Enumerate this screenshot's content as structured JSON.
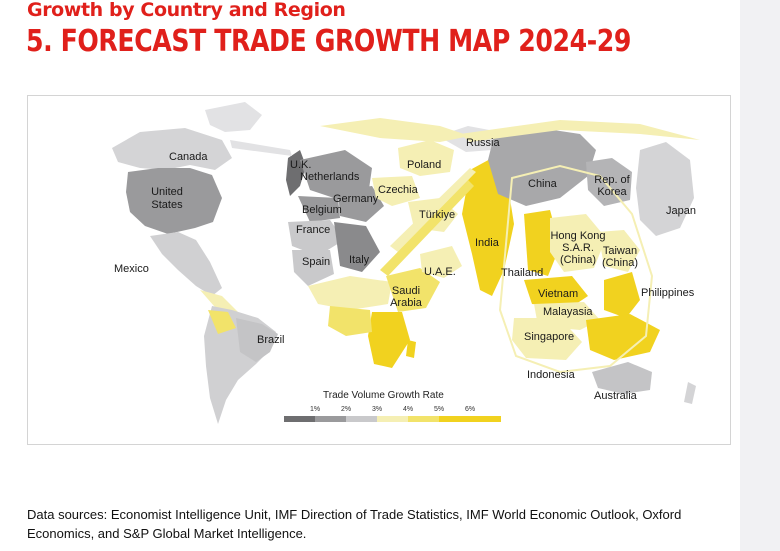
{
  "header": {
    "subtitle": "Growth by Country and Region",
    "title": "5. FORECAST TRADE GROWTH MAP 2024-29"
  },
  "map": {
    "labels": [
      {
        "key": "canada",
        "text": "Canada"
      },
      {
        "key": "united_states",
        "text": "United States"
      },
      {
        "key": "mexico",
        "text": "Mexico"
      },
      {
        "key": "brazil",
        "text": "Brazil"
      },
      {
        "key": "uk",
        "text": "U.K."
      },
      {
        "key": "netherlands",
        "text": "Netherlands"
      },
      {
        "key": "germany",
        "text": "Germany"
      },
      {
        "key": "belgium",
        "text": "Belgium"
      },
      {
        "key": "france",
        "text": "France"
      },
      {
        "key": "spain",
        "text": "Spain"
      },
      {
        "key": "italy",
        "text": "Italy"
      },
      {
        "key": "poland",
        "text": "Poland"
      },
      {
        "key": "czechia",
        "text": "Czechia"
      },
      {
        "key": "turkiye",
        "text": "Türkiye"
      },
      {
        "key": "russia",
        "text": "Russia"
      },
      {
        "key": "uae",
        "text": "U.A.E."
      },
      {
        "key": "saudi_arabia",
        "text": "Saudi Arabia"
      },
      {
        "key": "india",
        "text": "India"
      },
      {
        "key": "china",
        "text": "China"
      },
      {
        "key": "korea",
        "text": "Rep. of Korea"
      },
      {
        "key": "japan",
        "text": "Japan"
      },
      {
        "key": "hong_kong",
        "text": "Hong Kong S.A.R. (China)"
      },
      {
        "key": "taiwan",
        "text": "Taiwan (China)"
      },
      {
        "key": "thailand",
        "text": "Thailand"
      },
      {
        "key": "vietnam",
        "text": "Vietnam"
      },
      {
        "key": "malaysia",
        "text": "Malayasia"
      },
      {
        "key": "singapore",
        "text": "Singapore"
      },
      {
        "key": "philippines",
        "text": "Philippines"
      },
      {
        "key": "indonesia",
        "text": "Indonesia"
      },
      {
        "key": "australia",
        "text": "Australia"
      }
    ],
    "colors": {
      "1pct": "#6e6e70",
      "2pct": "#9a9a9c",
      "3pct": "#c9c9cb",
      "4pct": "#f5efb4",
      "5pct": "#f2e36a",
      "6pct": "#f1d21f",
      "outline": "#ffffff"
    }
  },
  "legend": {
    "title": "Trade Volume Growth Rate",
    "ticks": [
      "1%",
      "2%",
      "3%",
      "4%",
      "5%",
      "6%"
    ],
    "segment_colors": [
      "#6e6e70",
      "#9a9a9c",
      "#c9c9cb",
      "#f5efb4",
      "#f2e36a",
      "#f1d21f",
      "#f1d21f"
    ]
  },
  "sources": "Data sources: Economist Intelligence Unit, IMF Direction of Trade Statistics, IMF World Economic Outlook, Oxford Economics, and S&P Global Market Intelligence."
}
